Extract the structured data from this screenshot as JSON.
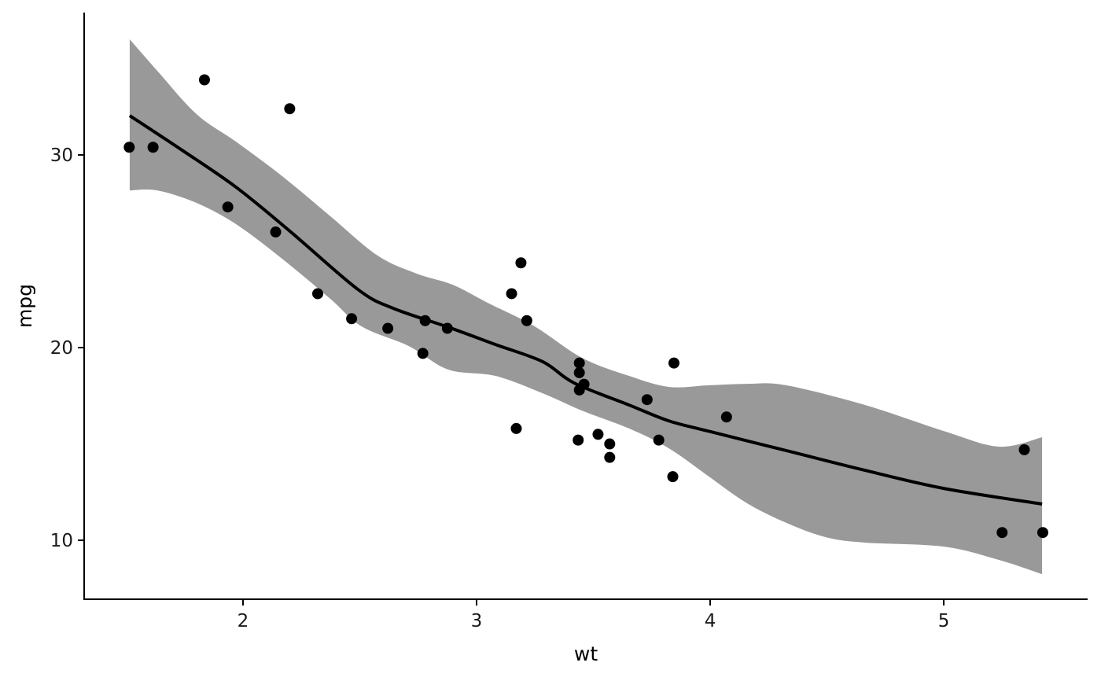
{
  "chart_data": {
    "type": "scatter",
    "title": "",
    "xlabel": "wt",
    "ylabel": "mpg",
    "xlim": [
      1.32,
      5.616
    ],
    "ylim": [
      6.94,
      37.39
    ],
    "xticks": [
      2,
      3,
      4,
      5
    ],
    "yticks": [
      10,
      20,
      30
    ],
    "xtick_labels": [
      "2",
      "3",
      "4",
      "5"
    ],
    "ytick_labels": [
      "10",
      "20",
      "30"
    ],
    "grid": false,
    "legend": "none",
    "colors": {
      "points": "#000000",
      "line": "#000000",
      "ribbon": "#999999"
    },
    "points": [
      [
        2.62,
        21.0
      ],
      [
        2.875,
        21.0
      ],
      [
        2.32,
        22.8
      ],
      [
        3.215,
        21.4
      ],
      [
        3.44,
        18.7
      ],
      [
        3.46,
        18.1
      ],
      [
        3.57,
        14.3
      ],
      [
        3.19,
        24.4
      ],
      [
        3.15,
        22.8
      ],
      [
        3.44,
        19.2
      ],
      [
        3.44,
        17.8
      ],
      [
        4.07,
        16.4
      ],
      [
        3.73,
        17.3
      ],
      [
        3.78,
        15.2
      ],
      [
        5.25,
        10.4
      ],
      [
        5.424,
        10.4
      ],
      [
        5.345,
        14.7
      ],
      [
        2.2,
        32.4
      ],
      [
        1.615,
        30.4
      ],
      [
        1.835,
        33.9
      ],
      [
        2.465,
        21.5
      ],
      [
        3.52,
        15.5
      ],
      [
        3.435,
        15.2
      ],
      [
        3.84,
        13.3
      ],
      [
        3.845,
        19.2
      ],
      [
        1.935,
        27.3
      ],
      [
        2.14,
        26.0
      ],
      [
        1.513,
        30.4
      ],
      [
        3.17,
        15.8
      ],
      [
        2.77,
        19.7
      ],
      [
        3.57,
        15.0
      ],
      [
        2.78,
        21.4
      ]
    ],
    "smooth": {
      "method": "loess",
      "fit": [
        [
          1.515,
          32.04
        ],
        [
          1.734,
          30.29
        ],
        [
          1.97,
          28.33
        ],
        [
          2.205,
          26.0
        ],
        [
          2.492,
          23.02
        ],
        [
          2.643,
          22.04
        ],
        [
          2.879,
          21.06
        ],
        [
          3.081,
          20.16
        ],
        [
          3.283,
          19.27
        ],
        [
          3.418,
          18.16
        ],
        [
          3.653,
          17.02
        ],
        [
          3.822,
          16.2
        ],
        [
          3.99,
          15.67
        ],
        [
          4.327,
          14.65
        ],
        [
          4.663,
          13.63
        ],
        [
          5.0,
          12.69
        ],
        [
          5.421,
          11.88
        ]
      ],
      "upper": [
        [
          1.515,
          36.0
        ],
        [
          1.633,
          34.37
        ],
        [
          1.801,
          32.12
        ],
        [
          1.97,
          30.69
        ],
        [
          2.172,
          28.86
        ],
        [
          2.374,
          26.82
        ],
        [
          2.576,
          24.78
        ],
        [
          2.744,
          23.84
        ],
        [
          2.896,
          23.27
        ],
        [
          3.047,
          22.33
        ],
        [
          3.249,
          21.1
        ],
        [
          3.451,
          19.47
        ],
        [
          3.653,
          18.53
        ],
        [
          3.822,
          17.96
        ],
        [
          3.99,
          18.04
        ],
        [
          4.158,
          18.12
        ],
        [
          4.327,
          18.04
        ],
        [
          4.663,
          17.02
        ],
        [
          5.0,
          15.67
        ],
        [
          5.236,
          14.86
        ],
        [
          5.421,
          15.35
        ]
      ],
      "lower": [
        [
          1.515,
          28.16
        ],
        [
          1.633,
          28.16
        ],
        [
          1.801,
          27.51
        ],
        [
          1.97,
          26.41
        ],
        [
          2.172,
          24.57
        ],
        [
          2.374,
          22.53
        ],
        [
          2.508,
          21.1
        ],
        [
          2.71,
          20.08
        ],
        [
          2.879,
          18.86
        ],
        [
          3.081,
          18.53
        ],
        [
          3.283,
          17.63
        ],
        [
          3.451,
          16.73
        ],
        [
          3.653,
          15.8
        ],
        [
          3.822,
          14.78
        ],
        [
          3.99,
          13.35
        ],
        [
          4.158,
          11.92
        ],
        [
          4.327,
          10.9
        ],
        [
          4.495,
          10.16
        ],
        [
          4.663,
          9.88
        ],
        [
          5.0,
          9.67
        ],
        [
          5.236,
          8.98
        ],
        [
          5.421,
          8.24
        ]
      ]
    }
  }
}
